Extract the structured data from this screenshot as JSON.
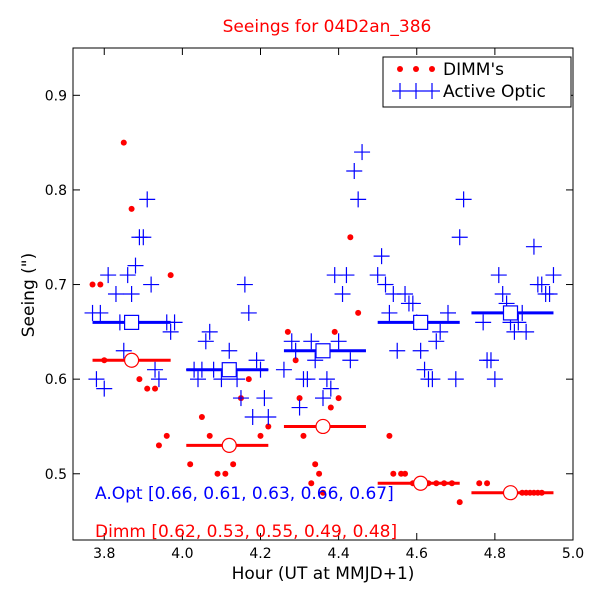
{
  "chart_data": {
    "type": "scatter",
    "title": "Seeings for 04D2an_386",
    "xlabel": "Hour (UT at MMJD+1)",
    "ylabel": "Seeing (\")",
    "xlim": [
      3.72,
      5.0
    ],
    "ylim": [
      0.43,
      0.95
    ],
    "x_ticks": [
      3.8,
      4.0,
      4.2,
      4.4,
      4.6,
      4.8,
      5.0
    ],
    "x_tick_labels": [
      "3.8",
      "4.0",
      "4.2",
      "4.4",
      "4.6",
      "4.8",
      "5.0"
    ],
    "y_ticks": [
      0.5,
      0.6,
      0.7,
      0.8,
      0.9
    ],
    "y_tick_labels": [
      "0.5",
      "0.6",
      "0.7",
      "0.8",
      "0.9"
    ],
    "legend": {
      "position": "top-right",
      "entries": [
        {
          "label": "DIMM's",
          "marker": "dot",
          "color": "#ff0000"
        },
        {
          "label": "Active Optic",
          "marker": "plus",
          "color": "#0000ff"
        }
      ]
    },
    "annotations": [
      {
        "text": "A.Opt [0.66, 0.61, 0.63, 0.66, 0.67]",
        "color": "#0000ff"
      },
      {
        "text": "Dimm [0.62, 0.53, 0.55, 0.49, 0.48]",
        "color": "#ff0000"
      }
    ],
    "series": [
      {
        "name": "DIMM's",
        "color": "#ff0000",
        "marker": "dot",
        "points": [
          [
            3.77,
            0.7
          ],
          [
            3.79,
            0.7
          ],
          [
            3.8,
            0.62
          ],
          [
            3.85,
            0.85
          ],
          [
            3.87,
            0.78
          ],
          [
            3.89,
            0.6
          ],
          [
            3.91,
            0.59
          ],
          [
            3.93,
            0.59
          ],
          [
            3.94,
            0.53
          ],
          [
            3.96,
            0.54
          ],
          [
            3.97,
            0.71
          ],
          [
            4.02,
            0.51
          ],
          [
            4.05,
            0.56
          ],
          [
            4.07,
            0.54
          ],
          [
            4.09,
            0.5
          ],
          [
            4.11,
            0.5
          ],
          [
            4.13,
            0.51
          ],
          [
            4.15,
            0.58
          ],
          [
            4.17,
            0.6
          ],
          [
            4.2,
            0.54
          ],
          [
            4.22,
            0.55
          ],
          [
            4.27,
            0.65
          ],
          [
            4.29,
            0.62
          ],
          [
            4.3,
            0.58
          ],
          [
            4.31,
            0.54
          ],
          [
            4.33,
            0.49
          ],
          [
            4.34,
            0.51
          ],
          [
            4.35,
            0.5
          ],
          [
            4.36,
            0.48
          ],
          [
            4.38,
            0.57
          ],
          [
            4.39,
            0.65
          ],
          [
            4.4,
            0.58
          ],
          [
            4.43,
            0.75
          ],
          [
            4.45,
            0.67
          ],
          [
            4.53,
            0.54
          ],
          [
            4.54,
            0.5
          ],
          [
            4.56,
            0.5
          ],
          [
            4.57,
            0.5
          ],
          [
            4.59,
            0.49
          ],
          [
            4.61,
            0.49
          ],
          [
            4.63,
            0.49
          ],
          [
            4.65,
            0.49
          ],
          [
            4.67,
            0.49
          ],
          [
            4.69,
            0.49
          ],
          [
            4.71,
            0.47
          ],
          [
            4.76,
            0.49
          ],
          [
            4.78,
            0.49
          ],
          [
            4.87,
            0.48
          ],
          [
            4.88,
            0.48
          ],
          [
            4.89,
            0.48
          ],
          [
            4.9,
            0.48
          ],
          [
            4.91,
            0.48
          ],
          [
            4.92,
            0.48
          ]
        ]
      },
      {
        "name": "Active Optic",
        "color": "#0000ff",
        "marker": "plus",
        "points": [
          [
            3.77,
            0.67
          ],
          [
            3.78,
            0.6
          ],
          [
            3.79,
            0.67
          ],
          [
            3.8,
            0.59
          ],
          [
            3.81,
            0.71
          ],
          [
            3.83,
            0.69
          ],
          [
            3.84,
            0.66
          ],
          [
            3.85,
            0.63
          ],
          [
            3.86,
            0.71
          ],
          [
            3.87,
            0.69
          ],
          [
            3.88,
            0.72
          ],
          [
            3.89,
            0.75
          ],
          [
            3.9,
            0.75
          ],
          [
            3.91,
            0.79
          ],
          [
            3.92,
            0.7
          ],
          [
            3.93,
            0.61
          ],
          [
            3.94,
            0.6
          ],
          [
            3.96,
            0.66
          ],
          [
            3.97,
            0.65
          ],
          [
            3.98,
            0.66
          ],
          [
            4.03,
            0.61
          ],
          [
            4.04,
            0.6
          ],
          [
            4.05,
            0.61
          ],
          [
            4.06,
            0.64
          ],
          [
            4.07,
            0.65
          ],
          [
            4.08,
            0.61
          ],
          [
            4.1,
            0.6
          ],
          [
            4.12,
            0.63
          ],
          [
            4.14,
            0.6
          ],
          [
            4.15,
            0.58
          ],
          [
            4.16,
            0.7
          ],
          [
            4.17,
            0.67
          ],
          [
            4.18,
            0.56
          ],
          [
            4.19,
            0.62
          ],
          [
            4.2,
            0.61
          ],
          [
            4.21,
            0.58
          ],
          [
            4.22,
            0.56
          ],
          [
            4.26,
            0.61
          ],
          [
            4.28,
            0.64
          ],
          [
            4.29,
            0.63
          ],
          [
            4.3,
            0.57
          ],
          [
            4.31,
            0.6
          ],
          [
            4.32,
            0.6
          ],
          [
            4.33,
            0.64
          ],
          [
            4.34,
            0.62
          ],
          [
            4.36,
            0.58
          ],
          [
            4.37,
            0.6
          ],
          [
            4.38,
            0.59
          ],
          [
            4.39,
            0.71
          ],
          [
            4.4,
            0.64
          ],
          [
            4.41,
            0.69
          ],
          [
            4.42,
            0.71
          ],
          [
            4.43,
            0.62
          ],
          [
            4.44,
            0.82
          ],
          [
            4.45,
            0.79
          ],
          [
            4.46,
            0.84
          ],
          [
            4.5,
            0.71
          ],
          [
            4.51,
            0.73
          ],
          [
            4.52,
            0.7
          ],
          [
            4.53,
            0.67
          ],
          [
            4.54,
            0.69
          ],
          [
            4.55,
            0.63
          ],
          [
            4.57,
            0.69
          ],
          [
            4.58,
            0.68
          ],
          [
            4.59,
            0.68
          ],
          [
            4.6,
            0.66
          ],
          [
            4.61,
            0.63
          ],
          [
            4.62,
            0.61
          ],
          [
            4.63,
            0.6
          ],
          [
            4.64,
            0.6
          ],
          [
            4.65,
            0.64
          ],
          [
            4.66,
            0.65
          ],
          [
            4.68,
            0.67
          ],
          [
            4.7,
            0.6
          ],
          [
            4.71,
            0.75
          ],
          [
            4.72,
            0.79
          ],
          [
            4.77,
            0.66
          ],
          [
            4.78,
            0.62
          ],
          [
            4.79,
            0.62
          ],
          [
            4.8,
            0.6
          ],
          [
            4.81,
            0.71
          ],
          [
            4.82,
            0.69
          ],
          [
            4.83,
            0.68
          ],
          [
            4.84,
            0.66
          ],
          [
            4.85,
            0.65
          ],
          [
            4.86,
            0.66
          ],
          [
            4.87,
            0.67
          ],
          [
            4.88,
            0.65
          ],
          [
            4.9,
            0.74
          ],
          [
            4.91,
            0.7
          ],
          [
            4.92,
            0.7
          ],
          [
            4.93,
            0.69
          ],
          [
            4.94,
            0.69
          ],
          [
            4.95,
            0.71
          ]
        ]
      }
    ],
    "bins": [
      {
        "x_start": 3.77,
        "x_end": 3.97,
        "aopt_median": 0.66,
        "dimm_median": 0.62,
        "center": 3.87
      },
      {
        "x_start": 4.01,
        "x_end": 4.22,
        "aopt_median": 0.61,
        "dimm_median": 0.53,
        "center": 4.12
      },
      {
        "x_start": 4.26,
        "x_end": 4.47,
        "aopt_median": 0.63,
        "dimm_median": 0.55,
        "center": 4.36
      },
      {
        "x_start": 4.5,
        "x_end": 4.71,
        "aopt_median": 0.66,
        "dimm_median": 0.49,
        "center": 4.61
      },
      {
        "x_start": 4.74,
        "x_end": 4.95,
        "aopt_median": 0.67,
        "dimm_median": 0.48,
        "center": 4.84
      }
    ],
    "colors": {
      "dimm": "#ff0000",
      "aopt": "#0000ff",
      "title": "#ff0000",
      "axis": "#000000"
    }
  }
}
